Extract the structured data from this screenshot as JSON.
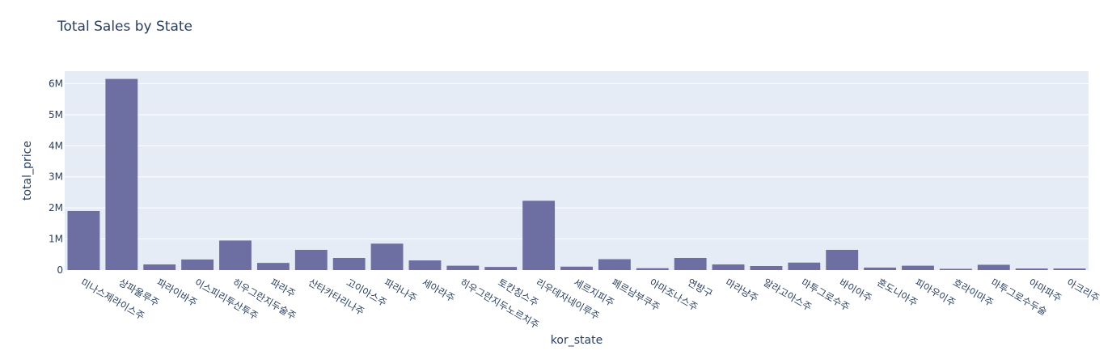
{
  "chart_data": {
    "type": "bar",
    "title": "Total Sales by State",
    "xlabel": "kor_state",
    "ylabel": "total_price",
    "ylim": [
      0,
      6400000
    ],
    "yticks": [
      0,
      1000000,
      2000000,
      3000000,
      4000000,
      5000000,
      6000000
    ],
    "ytick_labels": [
      "0",
      "1M",
      "2M",
      "3M",
      "4M",
      "5M",
      "6M"
    ],
    "grid": true,
    "colors": {
      "bar": "#636399",
      "plot_bg": "#e5ecf6",
      "text": "#2a3f5f"
    },
    "categories": [
      "미나스제라이스주",
      "상파울루주",
      "파라이바주",
      "이스피리투산투주",
      "히우그란지두술주",
      "파라주",
      "산타카타리나주",
      "고이아스주",
      "파라나주",
      "세아라주",
      "히우그란지두노르치주",
      "토칸칭스주",
      "리우데자네이루주",
      "세르지피주",
      "페르남부쿠주",
      "아마조나스주",
      "연방구",
      "마라냥주",
      "알라고아스주",
      "마투그로수주",
      "바이아주",
      "혼도니아주",
      "피아우이주",
      "호라이마주",
      "마투그로수두술",
      "아마파주",
      "아크리주"
    ],
    "values": [
      1900000,
      6150000,
      180000,
      340000,
      950000,
      230000,
      650000,
      390000,
      850000,
      310000,
      140000,
      100000,
      2230000,
      110000,
      350000,
      60000,
      390000,
      180000,
      130000,
      240000,
      650000,
      80000,
      140000,
      40000,
      170000,
      50000,
      50000
    ]
  }
}
